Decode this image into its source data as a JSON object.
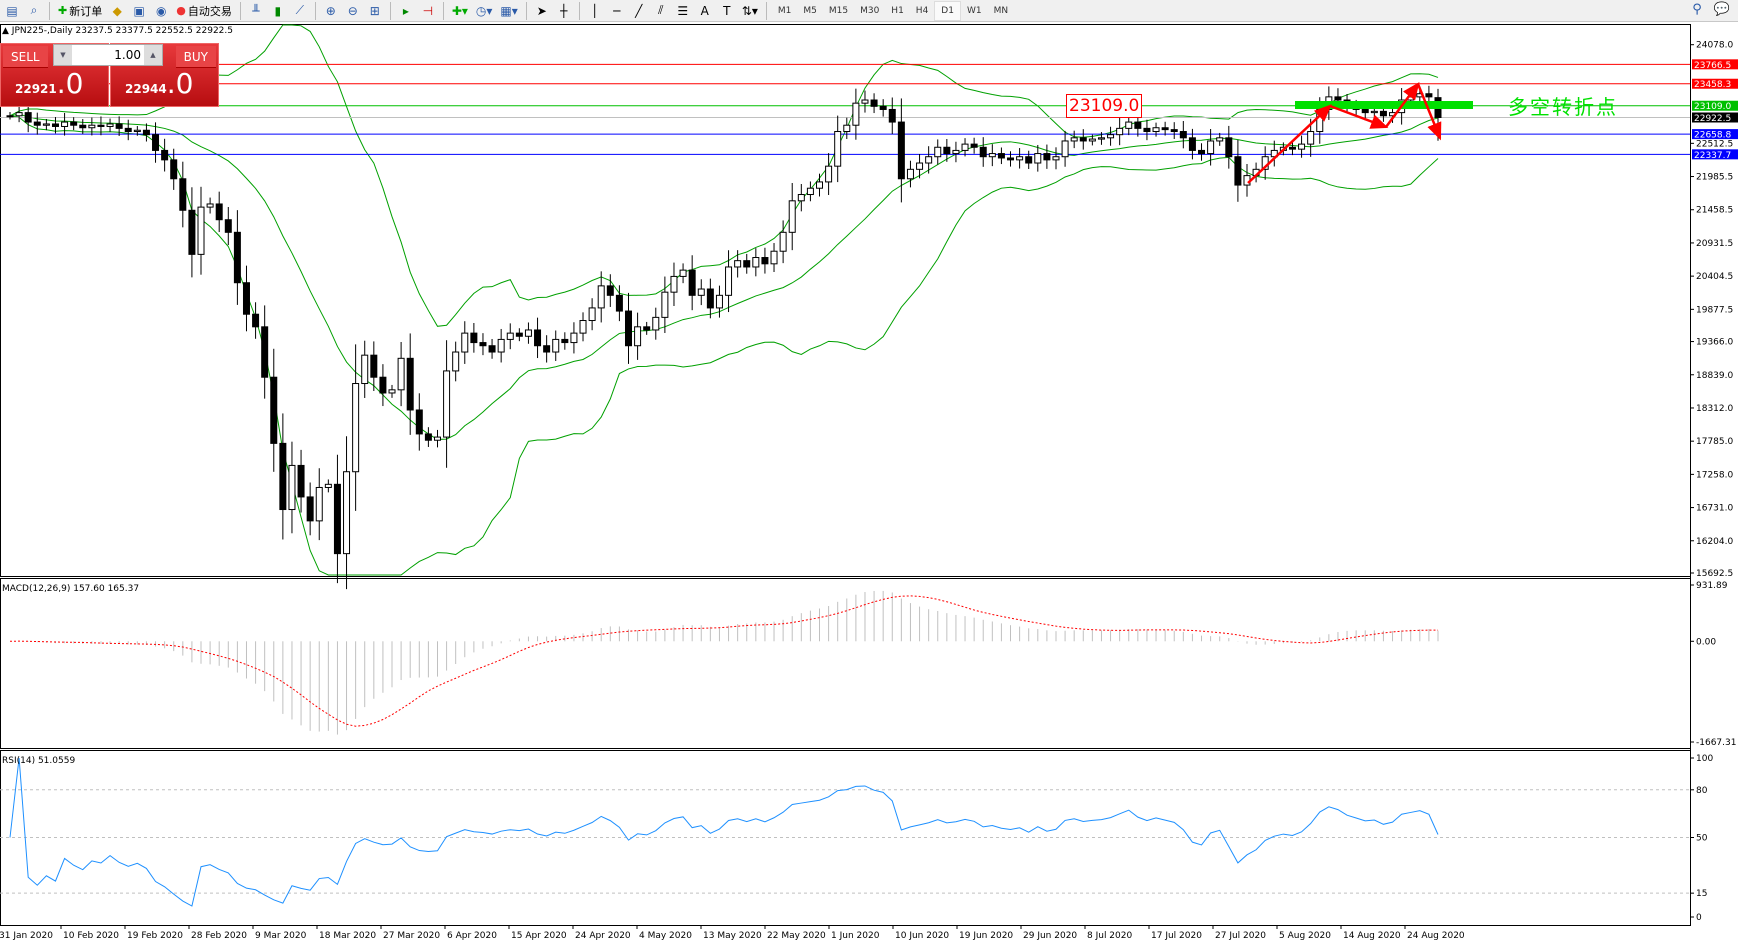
{
  "toolbar": {
    "new_order": "新订单",
    "auto_trading": "自动交易",
    "timeframes": [
      "M1",
      "M5",
      "M15",
      "M30",
      "H1",
      "H4",
      "D1",
      "W1",
      "MN"
    ],
    "active_timeframe": "D1"
  },
  "chart": {
    "header": "JPN225-,Daily  23237.5 23377.5 22552.5 22922.5",
    "symbol": "JPN225-",
    "period": "Daily"
  },
  "trade_panel": {
    "sell_label": "SELL",
    "buy_label": "BUY",
    "lot": "1.00",
    "sell_price_main": "22921",
    "sell_price_frac": ".0",
    "buy_price_main": "22944",
    "buy_price_frac": ".0"
  },
  "annotations": {
    "pivot_label": "23109.0",
    "pivot_text": "多空转折点",
    "pivot_color": "#00e000",
    "arrow_color": "#ff0000"
  },
  "chart_data": {
    "type": "candlestick",
    "ylim": [
      15692.5,
      24078.0
    ],
    "price_ticks": [
      "24078.0",
      "22512.5",
      "21985.5",
      "21458.5",
      "20931.5",
      "20404.5",
      "19877.5",
      "19366.0",
      "18839.0",
      "18312.0",
      "17785.0",
      "17258.0",
      "16731.0",
      "16204.0",
      "15692.5"
    ],
    "levels": [
      {
        "value": "23766.5",
        "color": "#ff0000"
      },
      {
        "value": "23458.3",
        "color": "#ff0000"
      },
      {
        "value": "23109.0",
        "color": "#00c000"
      },
      {
        "value": "22922.5",
        "color": "#000000"
      },
      {
        "value": "22658.8",
        "color": "#0000ff"
      },
      {
        "value": "22337.7",
        "color": "#0000ff"
      }
    ],
    "last_bar": {
      "open": 23237.5,
      "high": 23377.5,
      "low": 22552.5,
      "close": 22922.5
    },
    "closes": [
      22950,
      23000,
      22850,
      22800,
      22820,
      22780,
      22850,
      22800,
      22760,
      22800,
      22780,
      22820,
      22750,
      22700,
      22720,
      22650,
      22400,
      22250,
      21950,
      21450,
      20750,
      21500,
      21550,
      21300,
      21100,
      20300,
      19800,
      19600,
      18800,
      17750,
      16700,
      17400,
      16900,
      16520,
      17050,
      17100,
      16000,
      17300,
      18700,
      19150,
      18800,
      18550,
      18600,
      19100,
      18280,
      17900,
      17800,
      17850,
      18900,
      19200,
      19500,
      19350,
      19300,
      19200,
      19400,
      19500,
      19450,
      19550,
      19300,
      19200,
      19400,
      19350,
      19500,
      19700,
      19900,
      20250,
      20100,
      19850,
      19300,
      19600,
      19550,
      19750,
      20150,
      20400,
      20500,
      20100,
      20200,
      19900,
      20100,
      20550,
      20650,
      20550,
      20700,
      20600,
      20800,
      21100,
      21600,
      21700,
      21800,
      21900,
      22150,
      22700,
      22800,
      23150,
      23200,
      23100,
      23050,
      22850,
      21950,
      22100,
      22200,
      22300,
      22450,
      22350,
      22400,
      22500,
      22450,
      22300,
      22350,
      22280,
      22250,
      22300,
      22200,
      22350,
      22250,
      22300,
      22550,
      22600,
      22550,
      22580,
      22600,
      22650,
      22750,
      22850,
      22750,
      22700,
      22760,
      22730,
      22700,
      22600,
      22400,
      22350,
      22550,
      22600,
      22300,
      21850,
      22000,
      22100,
      22300,
      22400,
      22450,
      22420,
      22500,
      22700,
      23050,
      23250,
      23200,
      23100,
      23050,
      23000,
      23020,
      22950,
      23000,
      23200,
      23250,
      23300,
      23250,
      22922.5
    ],
    "x_ticks": [
      "31 Jan 2020",
      "10 Feb 2020",
      "19 Feb 2020",
      "28 Feb 2020",
      "9 Mar 2020",
      "18 Mar 2020",
      "27 Mar 2020",
      "6 Apr 2020",
      "15 Apr 2020",
      "24 Apr 2020",
      "4 May 2020",
      "13 May 2020",
      "22 May 2020",
      "1 Jun 2020",
      "10 Jun 2020",
      "19 Jun 2020",
      "29 Jun 2020",
      "8 Jul 2020",
      "17 Jul 2020",
      "27 Jul 2020",
      "5 Aug 2020",
      "14 Aug 2020",
      "24 Aug 2020"
    ],
    "indicators": {
      "bollinger": {
        "color": "#00a000"
      },
      "macd": {
        "label": "MACD(12,26,9) 157.60 165.37",
        "ylim": [
          -1667.31,
          931.89
        ],
        "ticks": [
          "931.89",
          "0.00",
          "-1667.31"
        ],
        "histogram_color": "#c0c0c0",
        "signal_color": "#ff0000"
      },
      "rsi": {
        "label": "RSI(14) 51.0559",
        "ylim": [
          0,
          100
        ],
        "ticks": [
          "100",
          "80",
          "50",
          "15",
          "0"
        ],
        "levels": [
          80,
          50,
          15
        ],
        "color": "#1e90ff"
      }
    }
  }
}
